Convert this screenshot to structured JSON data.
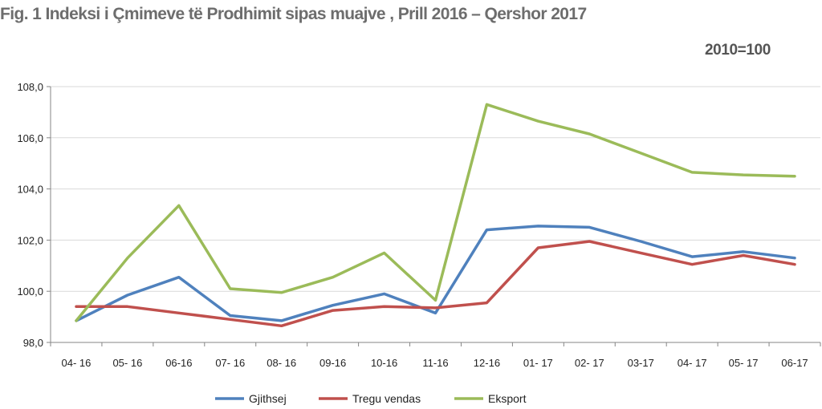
{
  "chart_data": {
    "type": "line",
    "title": "Fig. 1 Indeksi i Çmimeve të Prodhimit sipas muajve , Prill 2016 – Qershor 2017",
    "subtitle": "2010=100",
    "xlabel": "",
    "ylabel": "",
    "categories": [
      "04- 16",
      "05- 16",
      "06-16",
      "07- 16",
      "08- 16",
      "09-16",
      "10-16",
      "11-16",
      "12-16",
      "01- 17",
      "02- 17",
      "03-17",
      "04- 17",
      "05- 17",
      "06-17"
    ],
    "ylim": [
      98.0,
      108.0
    ],
    "yticks": [
      "98,0",
      "100,0",
      "102,0",
      "104,0",
      "106,0",
      "108,0"
    ],
    "grid": true,
    "legend_position": "bottom",
    "series": [
      {
        "name": "Gjithsej",
        "color": "#4f81bd",
        "values": [
          98.85,
          99.85,
          100.55,
          99.05,
          98.85,
          99.45,
          99.9,
          99.15,
          102.4,
          102.55,
          102.5,
          101.95,
          101.35,
          101.55,
          101.3
        ]
      },
      {
        "name": "Tregu vendas",
        "color": "#c0504d",
        "values": [
          99.4,
          99.4,
          99.15,
          98.9,
          98.65,
          99.25,
          99.4,
          99.35,
          99.55,
          101.7,
          101.95,
          101.5,
          101.05,
          101.4,
          101.05
        ]
      },
      {
        "name": "Eksport",
        "color": "#9bbb59",
        "values": [
          98.85,
          101.3,
          103.35,
          100.1,
          99.95,
          100.55,
          101.5,
          99.65,
          107.3,
          106.65,
          106.15,
          105.4,
          104.65,
          104.55,
          104.5
        ]
      }
    ]
  }
}
